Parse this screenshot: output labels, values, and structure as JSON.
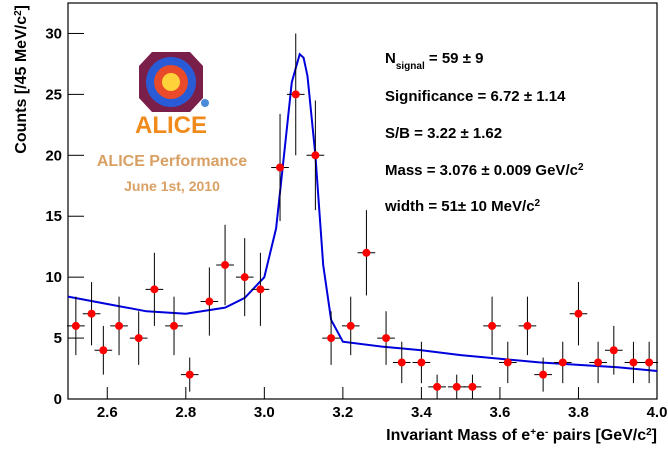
{
  "chart_data": {
    "type": "errorbar",
    "x_label": [
      {
        "text": "Invariant Mass of e"
      },
      {
        "text": "+",
        "sup": true
      },
      {
        "text": "e"
      },
      {
        "text": "-",
        "sup": true
      },
      {
        "text": " pairs [GeV/c"
      },
      {
        "text": "2",
        "sup": true
      },
      {
        "text": "]"
      }
    ],
    "y_label": [
      {
        "text": "Counts [/45 MeV/c"
      },
      {
        "text": "2",
        "sup": true
      },
      {
        "text": "]"
      }
    ],
    "xlim": [
      2.5,
      4.0
    ],
    "ylim": [
      0,
      32.5
    ],
    "xticks": [
      2.6,
      2.8,
      {
        "value": 3,
        "label": "3.0"
      },
      3.2,
      3.4,
      3.6,
      3.8,
      {
        "value": 4,
        "label": "4.0"
      }
    ],
    "yticks": [
      0,
      5,
      10,
      15,
      20,
      25,
      30
    ],
    "x": [
      2.52,
      2.56,
      2.59,
      2.63,
      2.68,
      2.72,
      2.77,
      2.81,
      2.86,
      2.9,
      2.95,
      2.99,
      3.04,
      3.08,
      3.13,
      3.17,
      3.22,
      3.26,
      3.31,
      3.35,
      3.4,
      3.44,
      3.49,
      3.53,
      3.58,
      3.62,
      3.67,
      3.71,
      3.76,
      3.8,
      3.85,
      3.89,
      3.94,
      3.98
    ],
    "values": [
      6,
      7,
      4,
      6,
      5,
      9,
      6,
      2,
      8,
      11,
      10,
      9,
      19,
      25,
      20,
      5,
      6,
      12,
      5,
      3,
      3,
      1,
      1,
      1,
      6,
      3,
      6,
      2,
      3,
      7,
      3,
      4,
      3,
      3
    ],
    "errors": [
      2.4,
      2.6,
      2,
      2.4,
      2.2,
      3,
      2.4,
      1.4,
      2.8,
      3.3,
      3.2,
      3,
      4.4,
      5,
      4.5,
      2.2,
      2.4,
      3.5,
      2.2,
      1.7,
      1.7,
      1,
      1,
      1,
      2.4,
      1.7,
      2.4,
      1.4,
      1.7,
      2.6,
      1.7,
      2,
      1.7,
      1.7
    ],
    "xerr": 0.0225,
    "color": "#ff0000",
    "fit": {
      "color": "#0000dd",
      "x": [
        2.5,
        2.6,
        2.7,
        2.8,
        2.9,
        2.95,
        3.0,
        3.03,
        3.05,
        3.07,
        3.09,
        3.1,
        3.11,
        3.13,
        3.15,
        3.17,
        3.2,
        3.3,
        3.4,
        3.5,
        3.6,
        3.7,
        3.8,
        3.9,
        4.0
      ],
      "values": [
        8.4,
        7.8,
        7.2,
        7.0,
        7.5,
        8.3,
        10,
        14,
        20,
        26,
        28.3,
        28,
        26.5,
        20,
        11,
        6.5,
        4.7,
        4.3,
        4.0,
        3.6,
        3.3,
        3.0,
        2.8,
        2.6,
        2.3
      ]
    },
    "annotations": [
      [
        {
          "text": "N"
        },
        {
          "text": "signal",
          "sub": true
        },
        {
          "text": " = 59 ± 9"
        }
      ],
      [
        {
          "text": "Significance = 6.72 ± 1.14"
        }
      ],
      [
        {
          "text": "S/B = 3.22 ± 1.62"
        }
      ],
      [
        {
          "text": "Mass = 3.076 ± 0.009 GeV/c"
        },
        {
          "text": "2",
          "sup": true
        }
      ],
      [
        {
          "text": "width = 51± 10 MeV/c"
        },
        {
          "text": "2",
          "sup": true
        }
      ]
    ],
    "logo_text": "ALICE",
    "performance_label": "ALICE Performance",
    "date_label": "June 1st, 2010"
  }
}
